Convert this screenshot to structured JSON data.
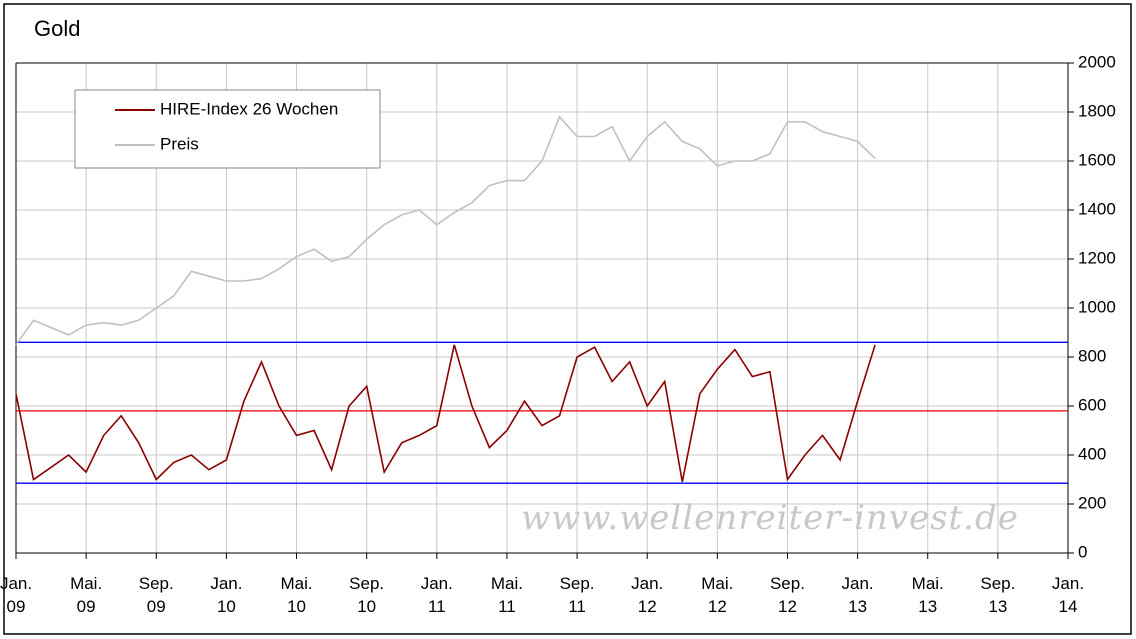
{
  "chart_data": {
    "type": "line",
    "title": "Gold",
    "x": [
      "2009-01",
      "2009-02",
      "2009-03",
      "2009-04",
      "2009-05",
      "2009-06",
      "2009-07",
      "2009-08",
      "2009-09",
      "2009-10",
      "2009-11",
      "2009-12",
      "2010-01",
      "2010-02",
      "2010-03",
      "2010-04",
      "2010-05",
      "2010-06",
      "2010-07",
      "2010-08",
      "2010-09",
      "2010-10",
      "2010-11",
      "2010-12",
      "2011-01",
      "2011-02",
      "2011-03",
      "2011-04",
      "2011-05",
      "2011-06",
      "2011-07",
      "2011-08",
      "2011-09",
      "2011-10",
      "2011-11",
      "2011-12",
      "2012-01",
      "2012-02",
      "2012-03",
      "2012-04",
      "2012-05",
      "2012-06",
      "2012-07",
      "2012-08",
      "2012-09",
      "2012-10",
      "2012-11",
      "2012-12",
      "2013-01",
      "2013-02"
    ],
    "series": [
      {
        "name": "HIRE-Index 26 Wochen",
        "color": "#8b0000",
        "values": [
          650,
          300,
          350,
          400,
          330,
          480,
          560,
          450,
          300,
          370,
          400,
          340,
          380,
          620,
          780,
          600,
          480,
          500,
          340,
          600,
          680,
          330,
          450,
          480,
          520,
          850,
          600,
          430,
          500,
          620,
          520,
          560,
          800,
          840,
          700,
          780,
          600,
          700,
          290,
          650,
          750,
          830,
          720,
          740,
          300,
          400,
          480,
          380,
          620,
          850
        ]
      },
      {
        "name": "Preis",
        "color": "#c0c0c0",
        "values": [
          850,
          950,
          920,
          890,
          930,
          940,
          930,
          950,
          1000,
          1050,
          1150,
          1130,
          1110,
          1110,
          1120,
          1160,
          1210,
          1240,
          1190,
          1210,
          1280,
          1340,
          1380,
          1400,
          1340,
          1390,
          1430,
          1500,
          1520,
          1520,
          1600,
          1780,
          1700,
          1700,
          1740,
          1600,
          1700,
          1760,
          1680,
          1650,
          1580,
          1600,
          1600,
          1630,
          1760,
          1760,
          1720,
          1700,
          1680,
          1610
        ]
      }
    ],
    "hlines": [
      {
        "value": 860,
        "color": "#0000ff"
      },
      {
        "value": 580,
        "color": "#e00000"
      },
      {
        "value": 285,
        "color": "#0000ff"
      }
    ],
    "ylim": [
      0,
      2000
    ],
    "yticks": [
      0,
      200,
      400,
      600,
      800,
      1000,
      1200,
      1400,
      1600,
      1800,
      2000
    ],
    "xlim": [
      "2009-01",
      "2014-01"
    ],
    "xticks": [
      {
        "value": "2009-01",
        "label": "Jan. 09"
      },
      {
        "value": "2009-05",
        "label": "Mai. 09"
      },
      {
        "value": "2009-09",
        "label": "Sep. 09"
      },
      {
        "value": "2010-01",
        "label": "Jan. 10"
      },
      {
        "value": "2010-05",
        "label": "Mai. 10"
      },
      {
        "value": "2010-09",
        "label": "Sep. 10"
      },
      {
        "value": "2011-01",
        "label": "Jan. 11"
      },
      {
        "value": "2011-05",
        "label": "Mai. 11"
      },
      {
        "value": "2011-09",
        "label": "Sep. 11"
      },
      {
        "value": "2012-01",
        "label": "Jan. 12"
      },
      {
        "value": "2012-05",
        "label": "Mai. 12"
      },
      {
        "value": "2012-09",
        "label": "Sep. 12"
      },
      {
        "value": "2013-01",
        "label": "Jan. 13"
      },
      {
        "value": "2013-05",
        "label": "Mai. 13"
      },
      {
        "value": "2013-09",
        "label": "Sep. 13"
      },
      {
        "value": "2014-01",
        "label": "Jan. 14"
      }
    ],
    "grid": true,
    "legend": "top-left",
    "watermark": "www.wellenreiter-invest.de"
  }
}
